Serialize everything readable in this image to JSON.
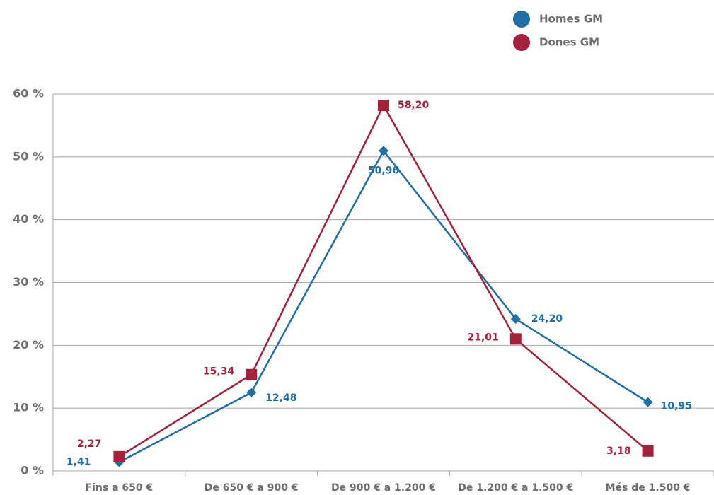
{
  "chart_data": {
    "type": "line",
    "categories": [
      "Fins a 650 €",
      "De 650 € a 900 €",
      "De 900 € a 1.200 €",
      "De 1.200 € a 1.500 €",
      "Més de 1.500 €"
    ],
    "series": [
      {
        "name": "Homes GM",
        "color": "#1f6ea6",
        "marker": "diamond",
        "values": [
          1.41,
          12.48,
          50.96,
          24.2,
          10.95
        ],
        "value_labels": [
          "1,41",
          "12,48",
          "50,96",
          "24,20",
          "10,95"
        ]
      },
      {
        "name": "Dones GM",
        "color": "#a52139",
        "marker": "square",
        "values": [
          2.27,
          15.34,
          58.2,
          21.01,
          3.18
        ],
        "value_labels": [
          "2,27",
          "15,34",
          "58,20",
          "21,01",
          "3,18"
        ]
      }
    ],
    "ylim": [
      0,
      60
    ],
    "yticks": [
      {
        "value": 0,
        "label": "0 %"
      },
      {
        "value": 10,
        "label": "10 %"
      },
      {
        "value": 20,
        "label": "20 %"
      },
      {
        "value": 30,
        "label": "30 %"
      },
      {
        "value": 40,
        "label": "40 %"
      },
      {
        "value": 50,
        "label": "50 %"
      },
      {
        "value": 60,
        "label": "60 %"
      }
    ],
    "grid": true,
    "legend": "top-right"
  }
}
